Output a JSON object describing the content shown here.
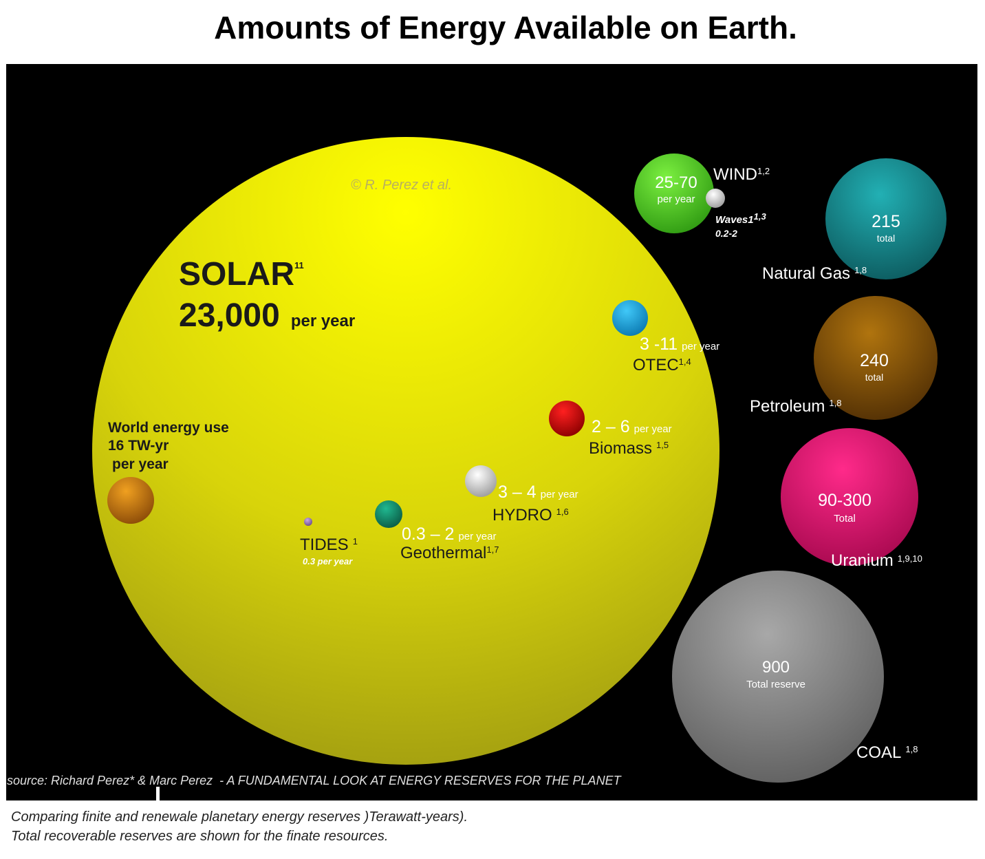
{
  "title": "Amounts of Energy Available on Earth.",
  "watermark": "© R. Perez et al.",
  "solar": {
    "name": "SOLAR",
    "ref": "11",
    "amount": "23,000",
    "unit": "per year"
  },
  "world_use": {
    "lines": [
      "World energy use",
      "16 TW-yr",
      "per year"
    ]
  },
  "wind": {
    "amount": "25-70",
    "unit": "per year",
    "name": "WIND",
    "ref": "1,2"
  },
  "waves": {
    "name": "Waves1",
    "ref": "1,3",
    "amount": "0.2-2"
  },
  "natural_gas": {
    "amount": "215",
    "unit": "total",
    "name": "Natural Gas",
    "ref": "1,8"
  },
  "petroleum": {
    "amount": "240",
    "unit": "total",
    "name": "Petroleum",
    "ref": "1,8"
  },
  "uranium": {
    "amount": "90-300",
    "unit": "Total",
    "name": "Uranium",
    "ref": "1,9,10"
  },
  "coal": {
    "amount": "900",
    "unit": "Total reserve",
    "name": "COAL",
    "ref": "1,8"
  },
  "otec": {
    "amount": "3 -11",
    "unit": "per year",
    "name": "OTEC",
    "ref": "1,4"
  },
  "biomass": {
    "amount": "2 – 6",
    "unit": "per year",
    "name": "Biomass",
    "ref": "1,5"
  },
  "hydro": {
    "amount": "3 – 4",
    "unit": "per year",
    "name": "HYDRO",
    "ref": "1,6"
  },
  "geothermal": {
    "amount": "0.3 – 2",
    "unit": "per year",
    "name": "Geothermal",
    "ref": "1,7"
  },
  "tides": {
    "name": "TIDES",
    "ref": "1",
    "amount": "0.3 per year"
  },
  "source": "source: Richard Perez* & Marc Perez  - A FUNDAMENTAL LOOK AT ENERGY RESERVES FOR THE PLANET",
  "caption": [
    "Comparing finite and renewale planetary energy reserves )Terawatt-years).",
    "Total recoverable reserves are shown for the finate resources."
  ]
}
